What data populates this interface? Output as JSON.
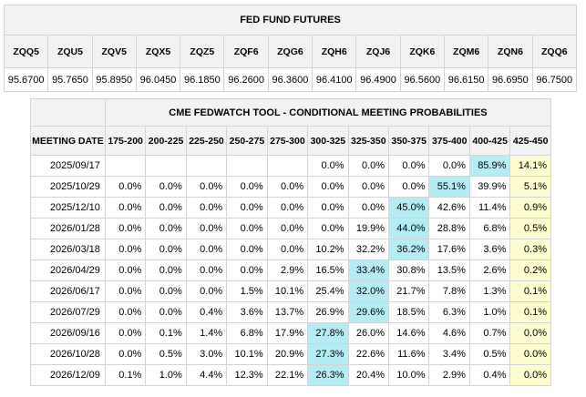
{
  "futures": {
    "title": "FED FUND FUTURES",
    "codes": [
      "ZQQ5",
      "ZQU5",
      "ZQV5",
      "ZQX5",
      "ZQZ5",
      "ZQF6",
      "ZQG6",
      "ZQH6",
      "ZQJ6",
      "ZQK6",
      "ZQM6",
      "ZQN6",
      "ZQQ6"
    ],
    "prices": [
      "95.6700",
      "95.7650",
      "95.8950",
      "96.0450",
      "96.1850",
      "96.2600",
      "96.3600",
      "96.4100",
      "96.4900",
      "96.5600",
      "96.6150",
      "96.6950",
      "96.7500"
    ]
  },
  "probabilities": {
    "title": "CME FEDWATCH TOOL - CONDITIONAL MEETING PROBABILITIES",
    "date_header": "MEETING DATE",
    "ranges": [
      "175-200",
      "200-225",
      "225-250",
      "250-275",
      "275-300",
      "300-325",
      "325-350",
      "350-375",
      "375-400",
      "400-425",
      "425-450"
    ],
    "highlight_color": "#b5ecf6",
    "current_range_color": "#fdfdd0",
    "rows": [
      {
        "date": "2025/09/17",
        "values": [
          "",
          "",
          "",
          "",
          "",
          "0.0%",
          "0.0%",
          "0.0%",
          "0.0%",
          "85.9%",
          "14.1%"
        ],
        "max_index": 9
      },
      {
        "date": "2025/10/29",
        "values": [
          "0.0%",
          "0.0%",
          "0.0%",
          "0.0%",
          "0.0%",
          "0.0%",
          "0.0%",
          "0.0%",
          "55.1%",
          "39.9%",
          "5.1%"
        ],
        "max_index": 8
      },
      {
        "date": "2025/12/10",
        "values": [
          "0.0%",
          "0.0%",
          "0.0%",
          "0.0%",
          "0.0%",
          "0.0%",
          "0.0%",
          "45.0%",
          "42.6%",
          "11.4%",
          "0.9%"
        ],
        "max_index": 7
      },
      {
        "date": "2026/01/28",
        "values": [
          "0.0%",
          "0.0%",
          "0.0%",
          "0.0%",
          "0.0%",
          "0.0%",
          "19.9%",
          "44.0%",
          "28.8%",
          "6.8%",
          "0.5%"
        ],
        "max_index": 7
      },
      {
        "date": "2026/03/18",
        "values": [
          "0.0%",
          "0.0%",
          "0.0%",
          "0.0%",
          "0.0%",
          "10.2%",
          "32.2%",
          "36.2%",
          "17.6%",
          "3.6%",
          "0.3%"
        ],
        "max_index": 7
      },
      {
        "date": "2026/04/29",
        "values": [
          "0.0%",
          "0.0%",
          "0.0%",
          "0.0%",
          "2.9%",
          "16.5%",
          "33.4%",
          "30.8%",
          "13.5%",
          "2.6%",
          "0.2%"
        ],
        "max_index": 6
      },
      {
        "date": "2026/06/17",
        "values": [
          "0.0%",
          "0.0%",
          "0.0%",
          "1.5%",
          "10.1%",
          "25.4%",
          "32.0%",
          "21.7%",
          "7.8%",
          "1.3%",
          "0.1%"
        ],
        "max_index": 6
      },
      {
        "date": "2026/07/29",
        "values": [
          "0.0%",
          "0.0%",
          "0.4%",
          "3.6%",
          "13.7%",
          "26.9%",
          "29.6%",
          "18.5%",
          "6.3%",
          "1.0%",
          "0.1%"
        ],
        "max_index": 6
      },
      {
        "date": "2026/09/16",
        "values": [
          "0.0%",
          "0.1%",
          "1.4%",
          "6.8%",
          "17.9%",
          "27.8%",
          "26.0%",
          "14.6%",
          "4.6%",
          "0.7%",
          "0.0%"
        ],
        "max_index": 5
      },
      {
        "date": "2026/10/28",
        "values": [
          "0.0%",
          "0.5%",
          "3.0%",
          "10.1%",
          "20.9%",
          "27.3%",
          "22.6%",
          "11.6%",
          "3.4%",
          "0.5%",
          "0.0%"
        ],
        "max_index": 5
      },
      {
        "date": "2026/12/09",
        "values": [
          "0.1%",
          "1.0%",
          "4.4%",
          "12.3%",
          "22.1%",
          "26.3%",
          "20.4%",
          "10.0%",
          "2.9%",
          "0.4%",
          "0.0%"
        ],
        "max_index": 5
      }
    ]
  }
}
